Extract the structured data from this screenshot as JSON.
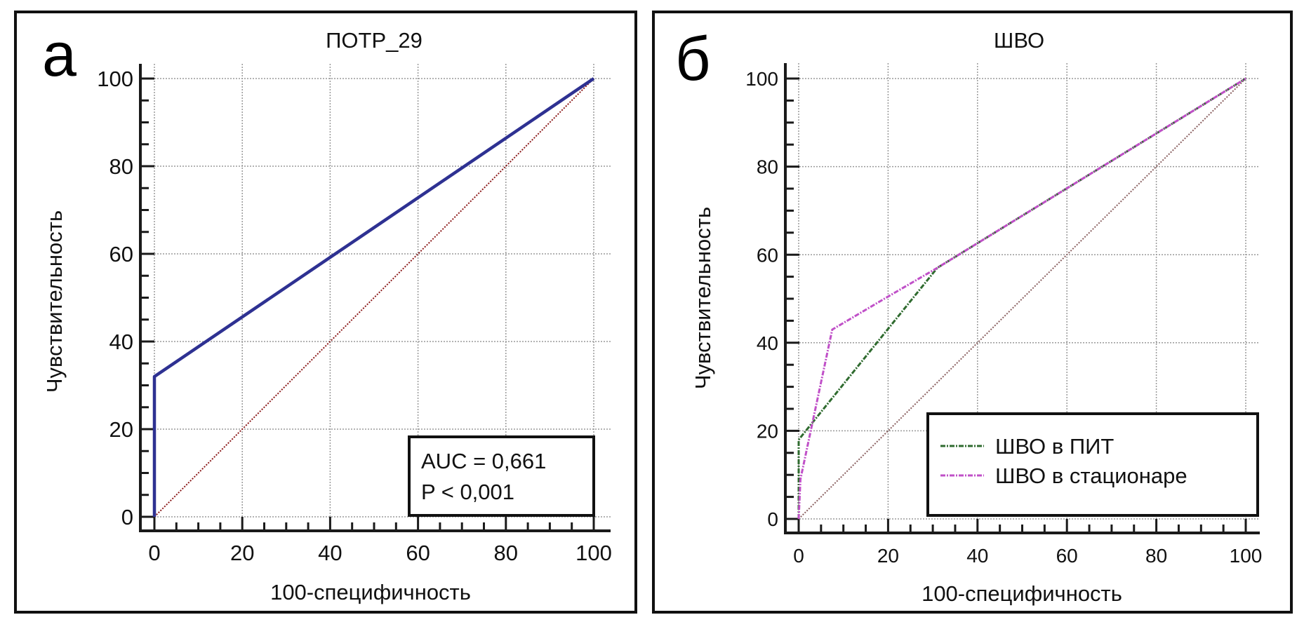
{
  "chart_data": [
    {
      "type": "line",
      "panel_label": "а",
      "title": "ПОТР_29",
      "xlabel": "100-специфичность",
      "ylabel": "Чувствительность",
      "xlim": [
        0,
        100
      ],
      "ylim": [
        0,
        100
      ],
      "xticks": [
        0,
        20,
        40,
        60,
        80,
        100
      ],
      "yticks": [
        0,
        20,
        40,
        60,
        80,
        100
      ],
      "minor_tick_step": 5,
      "grid": true,
      "series": [
        {
          "name": "ПОТР_29",
          "color": "#2e3192",
          "style": "solid",
          "points": [
            [
              0,
              0
            ],
            [
              0,
              32
            ],
            [
              40,
              59.2
            ],
            [
              70,
              79.6
            ],
            [
              96,
              97.3
            ],
            [
              100,
              100
            ]
          ]
        },
        {
          "name": "reference",
          "color": "#8b1a1a",
          "style": "dotted",
          "points": [
            [
              0,
              0
            ],
            [
              100,
              100
            ]
          ]
        }
      ],
      "annotation": {
        "lines": [
          "AUC = 0,661",
          "P < 0,001"
        ],
        "position": "bottom-right"
      }
    },
    {
      "type": "line",
      "panel_label": "б",
      "title": "ШВО",
      "xlabel": "100-специфичность",
      "ylabel": "Чувствительность",
      "xlim": [
        0,
        100
      ],
      "ylim": [
        0,
        100
      ],
      "xticks": [
        0,
        20,
        40,
        60,
        80,
        100
      ],
      "yticks": [
        0,
        20,
        40,
        60,
        80,
        100
      ],
      "minor_tick_step": 5,
      "grid": true,
      "series": [
        {
          "name": "ШВО в ПИТ",
          "color": "#2f6b2f",
          "style": "dashdot",
          "points": [
            [
              0,
              0
            ],
            [
              0,
              18
            ],
            [
              31,
              57
            ],
            [
              100,
              100
            ]
          ]
        },
        {
          "name": "ШВО в стационаре",
          "color": "#c050c8",
          "style": "dashdot",
          "points": [
            [
              0,
              0
            ],
            [
              0.4,
              9
            ],
            [
              7.5,
              43
            ],
            [
              20,
              50.5
            ],
            [
              31,
              57
            ],
            [
              100,
              100
            ]
          ]
        },
        {
          "name": "reference",
          "color": "#8a6060",
          "style": "dotted",
          "points": [
            [
              0,
              0
            ],
            [
              100,
              100
            ]
          ]
        }
      ],
      "legend": {
        "position": "bottom-right",
        "entries": [
          "ШВО в ПИТ",
          "ШВО в стационаре"
        ]
      }
    }
  ]
}
